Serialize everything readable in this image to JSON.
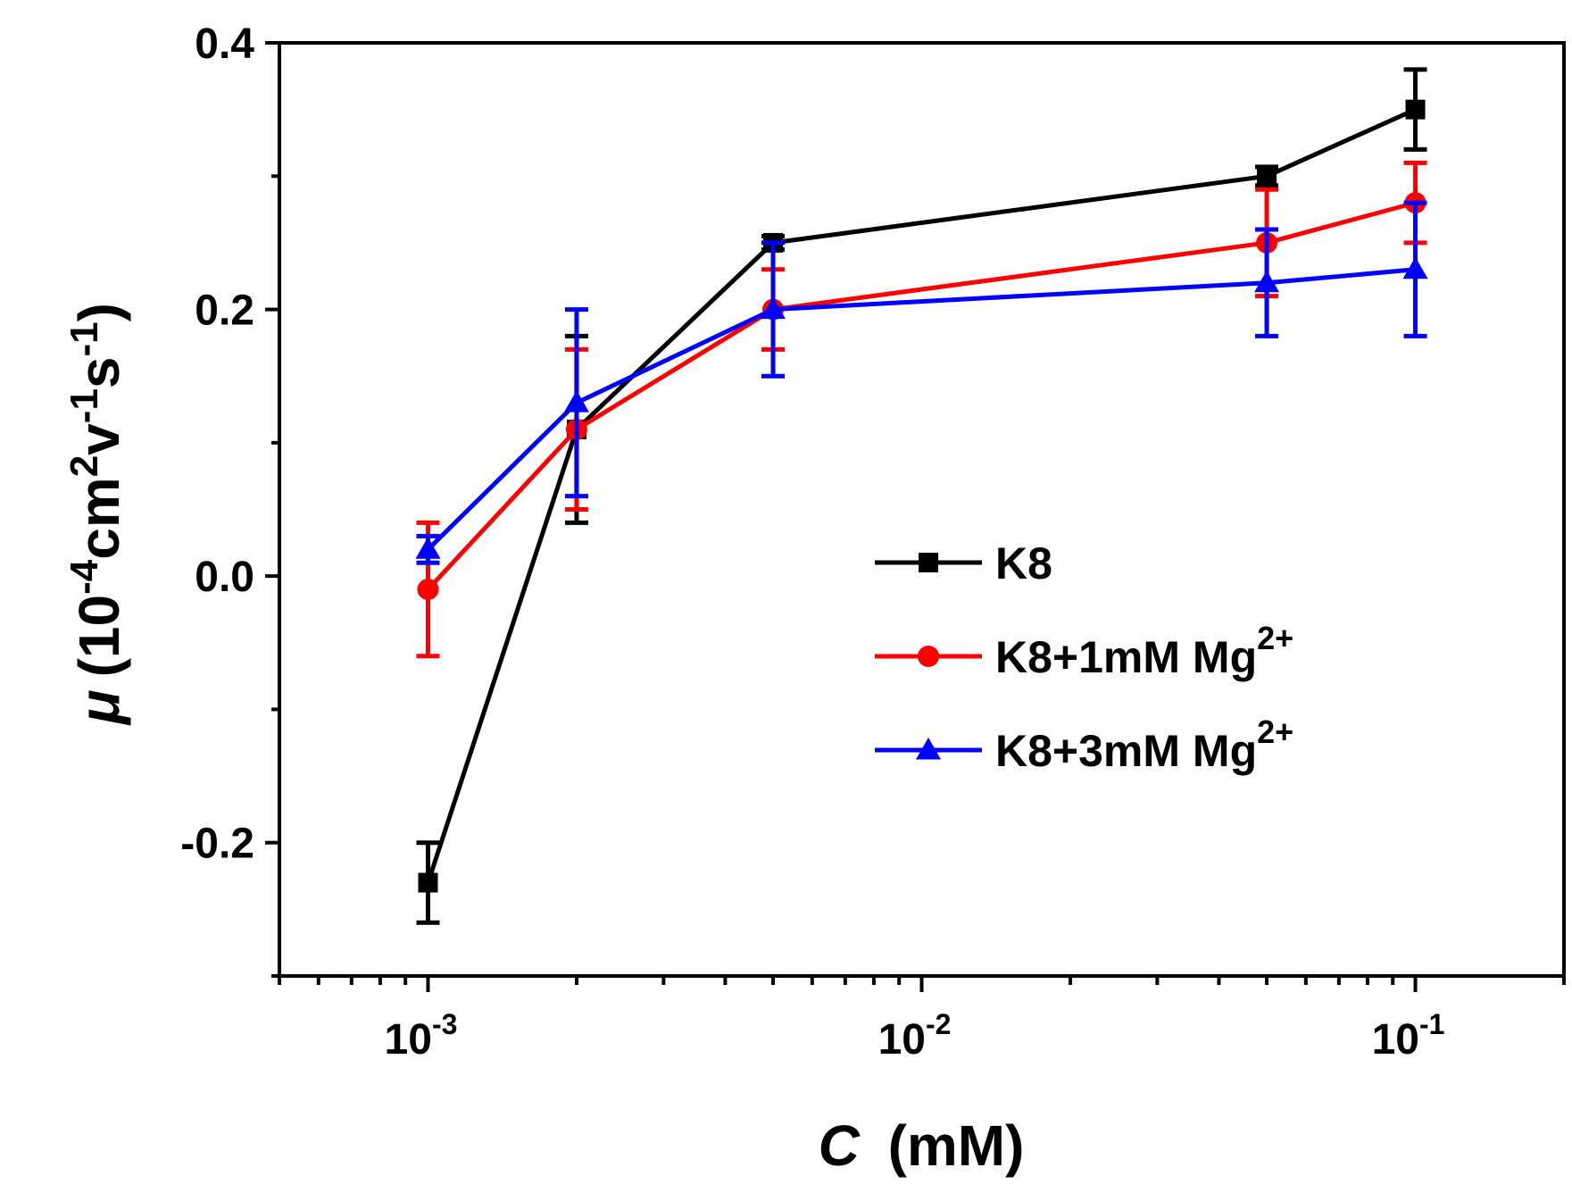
{
  "chart_data": {
    "type": "line",
    "title": "",
    "xlabel": "C",
    "xlabel_unit": "(mM)",
    "ylabel_symbol": "μ",
    "ylabel_unit": "(10-4cm2v-1s-1)",
    "ylabel_parts": [
      {
        "text": "(10",
        "sup": false
      },
      {
        "text": "-4",
        "sup": true
      },
      {
        "text": "cm",
        "sup": false
      },
      {
        "text": "2",
        "sup": true
      },
      {
        "text": "v",
        "sup": false
      },
      {
        "text": "-1",
        "sup": true
      },
      {
        "text": "s",
        "sup": false
      },
      {
        "text": "-1",
        "sup": true
      },
      {
        "text": ")",
        "sup": false
      }
    ],
    "x_scale": "log",
    "xlim": [
      0.0005,
      0.2
    ],
    "ylim": [
      -0.3,
      0.4
    ],
    "y_ticks": [
      -0.2,
      0.0,
      0.2,
      0.4
    ],
    "y_tick_labels": [
      "-0.2",
      "0.0",
      "0.2",
      "0.4"
    ],
    "x_major_ticks": [
      0.001,
      0.01,
      0.1
    ],
    "x_tick_labels": [
      {
        "base": "10",
        "exp": "-3"
      },
      {
        "base": "10",
        "exp": "-2"
      },
      {
        "base": "10",
        "exp": "-1"
      }
    ],
    "x": [
      0.001,
      0.002,
      0.005,
      0.05,
      0.1
    ],
    "series": [
      {
        "name": "K8",
        "legend_text": "K8",
        "legend_sup": "",
        "color": "#000000",
        "marker": "square",
        "values": [
          -0.23,
          0.11,
          0.25,
          0.3,
          0.35
        ],
        "errors": [
          0.03,
          0.07,
          0.005,
          0.007,
          0.03
        ]
      },
      {
        "name": "K8+1mM Mg2+",
        "legend_text": "K8+1mM Mg",
        "legend_sup": "2+",
        "color": "#ff0000",
        "marker": "circle",
        "values": [
          -0.01,
          0.11,
          0.2,
          0.25,
          0.28
        ],
        "errors": [
          0.05,
          0.06,
          0.03,
          0.04,
          0.03
        ]
      },
      {
        "name": "K8+3mM Mg2+",
        "legend_text": "K8+3mM Mg",
        "legend_sup": "2+",
        "color": "#0000ff",
        "marker": "triangle",
        "values": [
          0.02,
          0.13,
          0.2,
          0.22,
          0.23
        ],
        "errors": [
          0.01,
          0.07,
          0.05,
          0.04,
          0.05
        ]
      }
    ],
    "legend_position": "center-right",
    "grid": false
  }
}
